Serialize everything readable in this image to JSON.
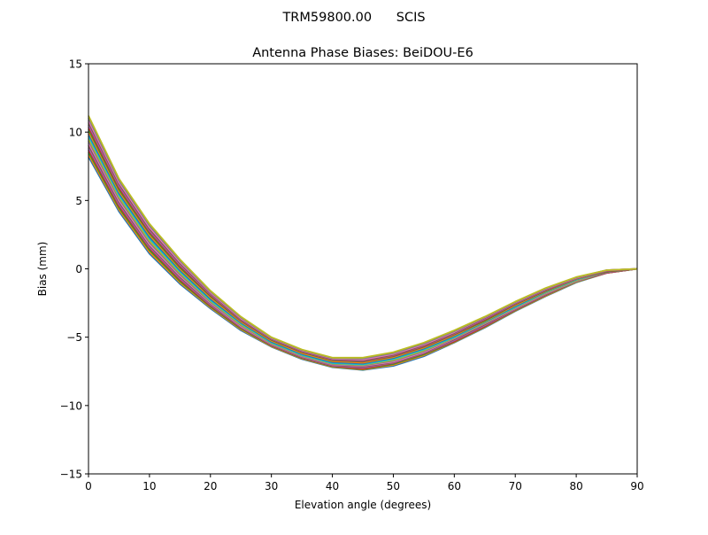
{
  "suptitle": "TRM59800.00      SCIS",
  "chart_data": {
    "type": "line",
    "title": "Antenna Phase Biases: BeiDOU-E6",
    "xlabel": "Elevation angle (degrees)",
    "ylabel": "Bias (mm)",
    "xlim": [
      0,
      90
    ],
    "ylim": [
      -15,
      15
    ],
    "xticks": [
      "0",
      "10",
      "20",
      "30",
      "40",
      "50",
      "60",
      "70",
      "80",
      "90"
    ],
    "yticks": [
      "−15",
      "−10",
      "−5",
      "0",
      "5",
      "10",
      "15"
    ],
    "grid": false,
    "colors": [
      "#1f77b4",
      "#ff7f0e",
      "#2ca02c",
      "#d62728",
      "#9467bd",
      "#8c564b",
      "#e377c2",
      "#7f7f7f",
      "#bcbd22",
      "#17becf"
    ],
    "x": [
      0,
      5,
      10,
      15,
      20,
      25,
      30,
      35,
      40,
      45,
      50,
      55,
      60,
      65,
      70,
      75,
      80,
      85,
      90
    ],
    "series": [
      {
        "values": [
          11.2,
          6.6,
          3.3,
          0.7,
          -1.6,
          -3.5,
          -5.0,
          -5.9,
          -6.5,
          -6.5,
          -6.1,
          -5.4,
          -4.5,
          -3.5,
          -2.4,
          -1.4,
          -0.6,
          -0.1,
          0
        ]
      },
      {
        "values": [
          10.7,
          6.2,
          2.9,
          0.4,
          -1.8,
          -3.7,
          -5.1,
          -6.0,
          -6.6,
          -6.7,
          -6.3,
          -5.6,
          -4.7,
          -3.6,
          -2.5,
          -1.5,
          -0.7,
          -0.1,
          0
        ]
      },
      {
        "values": [
          10.2,
          5.8,
          2.6,
          0.1,
          -2.0,
          -3.8,
          -5.2,
          -6.1,
          -6.7,
          -6.8,
          -6.4,
          -5.7,
          -4.8,
          -3.8,
          -2.6,
          -1.6,
          -0.7,
          -0.2,
          0
        ]
      },
      {
        "values": [
          9.7,
          5.4,
          2.2,
          -0.2,
          -2.3,
          -4.0,
          -5.4,
          -6.3,
          -6.9,
          -7.0,
          -6.6,
          -5.9,
          -5.0,
          -3.9,
          -2.8,
          -1.7,
          -0.8,
          -0.2,
          0
        ]
      },
      {
        "values": [
          9.2,
          5.0,
          1.8,
          -0.5,
          -2.5,
          -4.2,
          -5.5,
          -6.4,
          -7.0,
          -7.1,
          -6.8,
          -6.1,
          -5.1,
          -4.0,
          -2.9,
          -1.8,
          -0.9,
          -0.2,
          0
        ]
      },
      {
        "values": [
          8.7,
          4.6,
          1.5,
          -0.8,
          -2.7,
          -4.3,
          -5.6,
          -6.5,
          -7.1,
          -7.3,
          -6.9,
          -6.2,
          -5.3,
          -4.2,
          -3.0,
          -1.9,
          -0.9,
          -0.3,
          0
        ]
      },
      {
        "values": [
          8.2,
          4.2,
          1.1,
          -1.1,
          -2.9,
          -4.5,
          -5.7,
          -6.6,
          -7.2,
          -7.4,
          -7.1,
          -6.4,
          -5.4,
          -4.3,
          -3.1,
          -2.0,
          -1.0,
          -0.3,
          0
        ]
      }
    ]
  }
}
